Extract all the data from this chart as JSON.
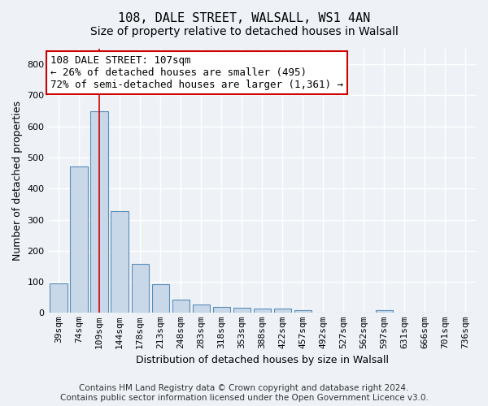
{
  "title_line1": "108, DALE STREET, WALSALL, WS1 4AN",
  "title_line2": "Size of property relative to detached houses in Walsall",
  "xlabel": "Distribution of detached houses by size in Walsall",
  "ylabel": "Number of detached properties",
  "categories": [
    "39sqm",
    "74sqm",
    "109sqm",
    "144sqm",
    "178sqm",
    "213sqm",
    "248sqm",
    "283sqm",
    "318sqm",
    "353sqm",
    "388sqm",
    "422sqm",
    "457sqm",
    "492sqm",
    "527sqm",
    "562sqm",
    "597sqm",
    "631sqm",
    "666sqm",
    "701sqm",
    "736sqm"
  ],
  "values": [
    95,
    470,
    648,
    327,
    158,
    92,
    42,
    26,
    20,
    16,
    15,
    15,
    10,
    0,
    0,
    0,
    10,
    0,
    0,
    0,
    0
  ],
  "bar_color": "#c8d8e8",
  "bar_edge_color": "#5b8db8",
  "highlight_bar_index": 2,
  "highlight_line_color": "#cc0000",
  "annotation_line1": "108 DALE STREET: 107sqm",
  "annotation_line2": "← 26% of detached houses are smaller (495)",
  "annotation_line3": "72% of semi-detached houses are larger (1,361) →",
  "annotation_box_color": "#ffffff",
  "annotation_box_edge_color": "#cc0000",
  "ylim": [
    0,
    850
  ],
  "yticks": [
    0,
    100,
    200,
    300,
    400,
    500,
    600,
    700,
    800
  ],
  "footer_line1": "Contains HM Land Registry data © Crown copyright and database right 2024.",
  "footer_line2": "Contains public sector information licensed under the Open Government Licence v3.0.",
  "background_color": "#eef2f7",
  "grid_color": "#ffffff",
  "title_fontsize": 11,
  "subtitle_fontsize": 10,
  "axis_label_fontsize": 9,
  "tick_fontsize": 8,
  "annotation_fontsize": 9,
  "footer_fontsize": 7.5
}
